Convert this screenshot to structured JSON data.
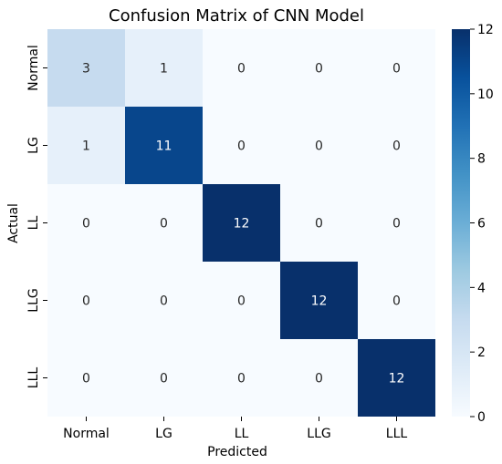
{
  "chart_data": {
    "type": "heatmap",
    "title": "Confusion Matrix of CNN Model",
    "xlabel": "Predicted",
    "ylabel": "Actual",
    "x_categories": [
      "Normal",
      "LG",
      "LL",
      "LLG",
      "LLL"
    ],
    "y_categories": [
      "Normal",
      "LG",
      "LL",
      "LLG",
      "LLL"
    ],
    "values": [
      [
        3,
        1,
        0,
        0,
        0
      ],
      [
        1,
        11,
        0,
        0,
        0
      ],
      [
        0,
        0,
        12,
        0,
        0
      ],
      [
        0,
        0,
        0,
        12,
        0
      ],
      [
        0,
        0,
        0,
        0,
        12
      ]
    ],
    "value_range": [
      0,
      12
    ],
    "colormap": "Blues",
    "colorbar": {
      "ticks": [
        0,
        2,
        4,
        6,
        8,
        10,
        12
      ],
      "placement": "right"
    },
    "grid": false,
    "colors": {
      "low": "#f7fbff",
      "high": "#08306b"
    }
  }
}
